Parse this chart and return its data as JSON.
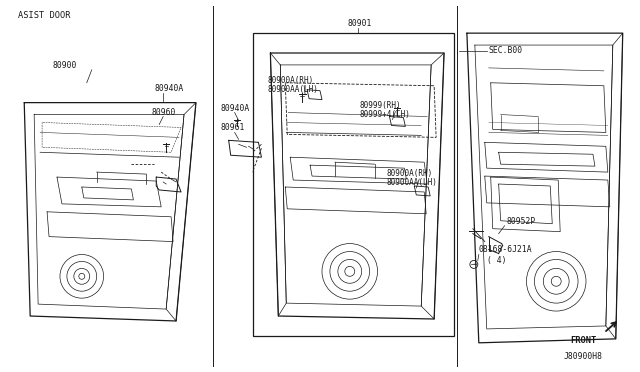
{
  "background_color": "#ffffff",
  "fig_width": 6.4,
  "fig_height": 3.72,
  "dpi": 100,
  "line_color": "#1a1a1a",
  "text_color": "#1a1a1a",
  "labels": {
    "asist_door": "ASIST DOOR",
    "front": "FRONT",
    "sec_b00": "SEC.B00",
    "j80900h8": "J80900H8",
    "part_80900": "80900",
    "part_80940a_top": "80940A",
    "part_80960": "80960",
    "part_80940a_mid": "80940A",
    "part_80961": "80961",
    "part_80901": "80901",
    "part_80900a_rh": "80900A(RH)",
    "part_80900aa_lh": "80900AA(LH)",
    "part_80999_rh": "80999(RH)",
    "part_80999_4_lh": "80999+4(LH)",
    "part_80900a_rh2": "80900A(RH)",
    "part_80900aa_lh2": "80900AA(LH)",
    "part_80952p": "80952P",
    "part_08168": "08168-6J21A",
    "part_4": "( 4)"
  }
}
